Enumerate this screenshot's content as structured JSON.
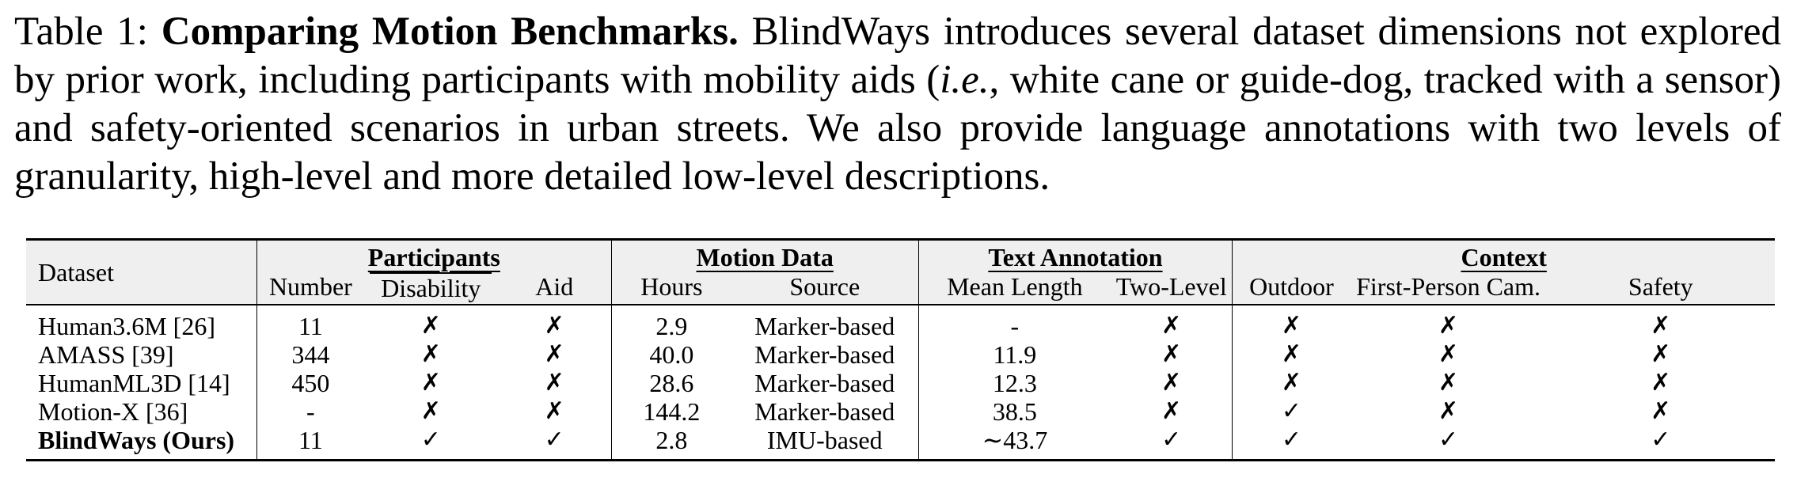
{
  "caption": {
    "label": "Table 1:",
    "title": "Comparing Motion Benchmarks.",
    "text_1": "BlindWays introduces several dataset dimensions not explored by prior work, including participants with mobility aids (",
    "ie": "i.e.",
    "text_2": ", white cane or guide-dog, tracked with a sensor) and safety-oriented scenarios in urban streets.  We also provide language annotations with two levels of granularity, high-level and more detailed low-level descriptions."
  },
  "table": {
    "dataset_header": "Dataset",
    "groups": {
      "participants": "Participants",
      "motion_data": "Motion Data",
      "text_annotation": "Text Annotation",
      "context": "Context"
    },
    "columns": {
      "number": "Number",
      "disability": "Disability",
      "aid": "Aid",
      "hours": "Hours",
      "source": "Source",
      "mean_length": "Mean Length",
      "two_level": "Two-Level",
      "outdoor": "Outdoor",
      "first_person_cam": "First-Person Cam.",
      "safety": "Safety"
    },
    "rows": [
      {
        "name": "Human3.6M [26]",
        "number": "11",
        "disability": "✗",
        "aid": "✗",
        "hours": "2.9",
        "source": "Marker-based",
        "mean_length": "-",
        "two_level": "✗",
        "outdoor": "✗",
        "first_person_cam": "✗",
        "safety": "✗"
      },
      {
        "name": "AMASS [39]",
        "number": "344",
        "disability": "✗",
        "aid": "✗",
        "hours": "40.0",
        "source": "Marker-based",
        "mean_length": "11.9",
        "two_level": "✗",
        "outdoor": "✗",
        "first_person_cam": "✗",
        "safety": "✗"
      },
      {
        "name": "HumanML3D [14]",
        "number": "450",
        "disability": "✗",
        "aid": "✗",
        "hours": "28.6",
        "source": "Marker-based",
        "mean_length": "12.3",
        "two_level": "✗",
        "outdoor": "✗",
        "first_person_cam": "✗",
        "safety": "✗"
      },
      {
        "name": "Motion-X [36]",
        "number": "-",
        "disability": "✗",
        "aid": "✗",
        "hours": "144.2",
        "source": "Marker-based",
        "mean_length": "38.5",
        "two_level": "✗",
        "outdoor": "✓",
        "first_person_cam": "✗",
        "safety": "✗"
      },
      {
        "name": "BlindWays (Ours)",
        "number": "11",
        "disability": "✓",
        "aid": "✓",
        "hours": "2.8",
        "source": "IMU-based",
        "mean_length": "∼43.7",
        "two_level": "✓",
        "outdoor": "✓",
        "first_person_cam": "✓",
        "safety": "✓"
      }
    ]
  }
}
